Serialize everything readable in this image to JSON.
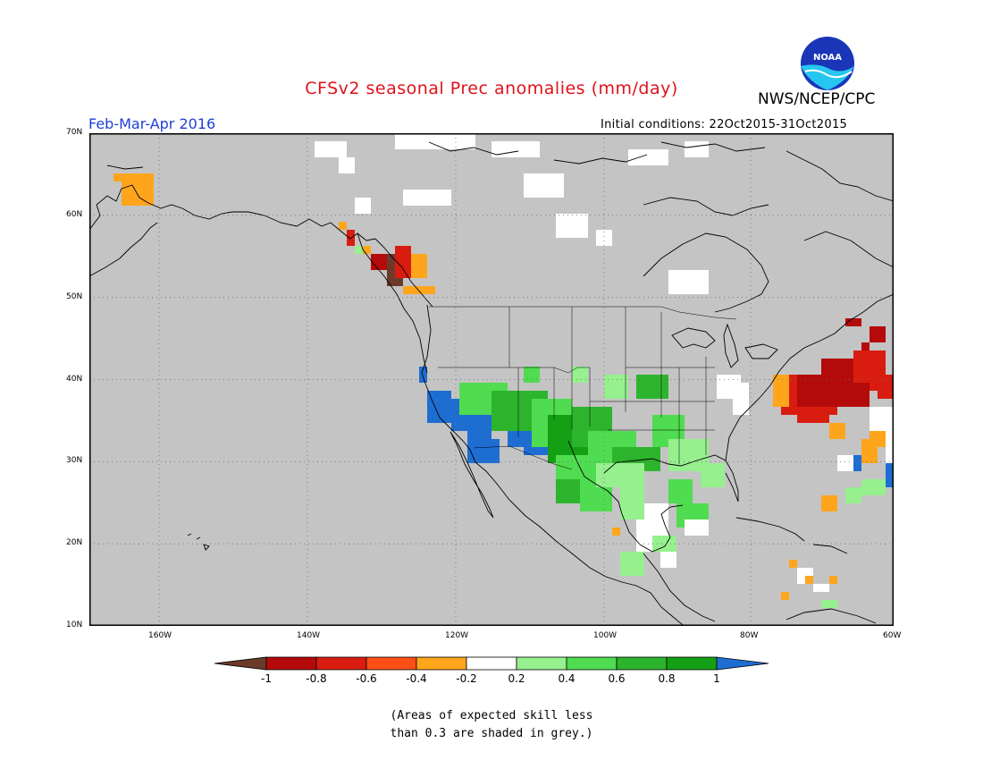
{
  "header": {
    "title": "CFSv2 seasonal Prec anomalies (mm/day)",
    "agency": "NWS/NCEP/CPC",
    "logo_text": "NOAA",
    "period": "Feb-Mar-Apr 2016",
    "initial_conditions": "Initial conditions: 22Oct2015-31Oct2015"
  },
  "map": {
    "lat_labels": [
      "70N",
      "60N",
      "50N",
      "40N",
      "30N",
      "20N",
      "10N"
    ],
    "lon_labels": [
      "160W",
      "140W",
      "120W",
      "100W",
      "80W",
      "60W"
    ],
    "grid": "dotted",
    "no_skill_color": "#c4c4c4",
    "land_outline_color": "#000000"
  },
  "colorbar": {
    "tick_labels": [
      "-1",
      "-0.8",
      "-0.6",
      "-0.4",
      "-0.2",
      "0.2",
      "0.4",
      "0.6",
      "0.8",
      "1"
    ],
    "colors": [
      "#6b3a2a",
      "#b40a0a",
      "#d81d10",
      "#ff4f17",
      "#ffa51c",
      "#ffffff",
      "#96f08e",
      "#50dc50",
      "#2db42d",
      "#14a014",
      "#1e6ed2"
    ]
  },
  "footnote": {
    "line1": "(Areas of expected skill less",
    "line2": "than 0.3 are shaded in grey.)"
  }
}
